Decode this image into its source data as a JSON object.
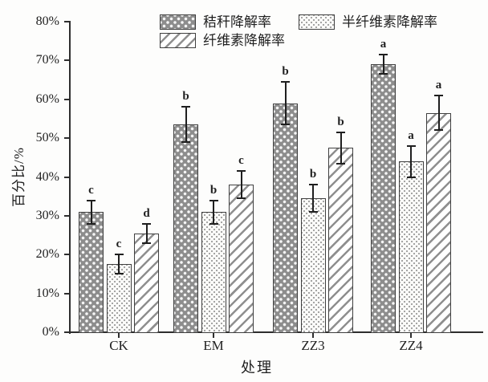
{
  "chart_data": {
    "type": "bar",
    "title": "",
    "xlabel": "处理",
    "ylabel": "百分比/%",
    "categories": [
      "CK",
      "EM",
      "ZZ3",
      "ZZ4"
    ],
    "series": [
      {
        "name": "秸秆降解率",
        "pattern": "dark-dots",
        "values": [
          31,
          53.5,
          59,
          69
        ],
        "errors": [
          3,
          4.5,
          5.5,
          2.5
        ],
        "letters": [
          "c",
          "b",
          "b",
          "a"
        ]
      },
      {
        "name": "半纤维素降解率",
        "pattern": "light-dots",
        "values": [
          17.5,
          31,
          34.5,
          44
        ],
        "errors": [
          2.5,
          3,
          3.5,
          4
        ],
        "letters": [
          "c",
          "b",
          "b",
          "a"
        ]
      },
      {
        "name": "纤维素降解率",
        "pattern": "diagonal-hatch",
        "values": [
          25.5,
          38,
          47.5,
          56.5
        ],
        "errors": [
          2.5,
          3.5,
          4,
          4.5
        ],
        "letters": [
          "d",
          "c",
          "b",
          "a"
        ]
      }
    ],
    "ylim": [
      0,
      80
    ],
    "ytick_step": 10,
    "ytick_labels": [
      "0%",
      "10%",
      "20%",
      "30%",
      "40%",
      "50%",
      "60%",
      "70%",
      "80%"
    ],
    "grid": false,
    "legend_position": "top-center",
    "error_bars": true
  },
  "colors": {
    "background": "#fdfdfc",
    "axis": "#2e2e2e",
    "text": "#1f1f1f",
    "bar_dark_fill": "#8d8d8d",
    "bar_light_fill": "#fcfcfa",
    "bar_border": "#3f3f3f",
    "hatch_line": "#8f8f8f",
    "dot_light": "#9b9b9b"
  }
}
